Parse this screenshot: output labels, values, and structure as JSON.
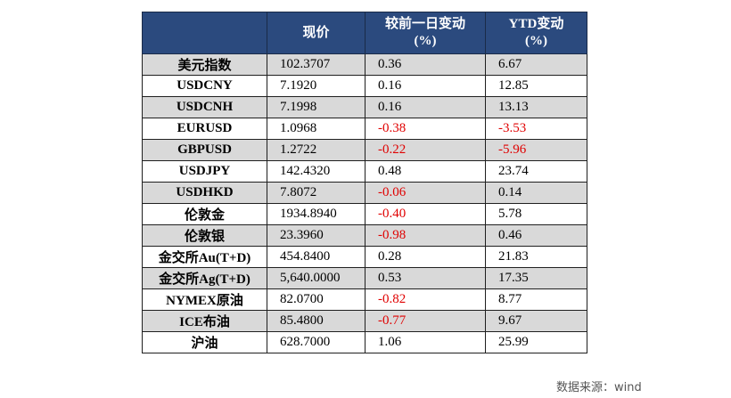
{
  "table": {
    "headers": [
      "",
      "现价",
      "较前一日变动\n(%)",
      "YTD变动\n(%)"
    ],
    "header_lines": {
      "price": "现价",
      "day_change": [
        "较前一日变动",
        "(%)"
      ],
      "ytd_change": [
        "YTD变动",
        "(%)"
      ]
    },
    "rows": [
      {
        "name": "美元指数",
        "price": "102.3707",
        "day": "0.36",
        "ytd": "6.67"
      },
      {
        "name": "USDCNY",
        "price": "7.1920",
        "day": "0.16",
        "ytd": "12.85"
      },
      {
        "name": "USDCNH",
        "price": "7.1998",
        "day": "0.16",
        "ytd": "13.13"
      },
      {
        "name": "EURUSD",
        "price": "1.0968",
        "day": "-0.38",
        "ytd": "-3.53"
      },
      {
        "name": "GBPUSD",
        "price": "1.2722",
        "day": "-0.22",
        "ytd": "-5.96"
      },
      {
        "name": "USDJPY",
        "price": "142.4320",
        "day": "0.48",
        "ytd": "23.74"
      },
      {
        "name": "USDHKD",
        "price": "7.8072",
        "day": "-0.06",
        "ytd": "0.14"
      },
      {
        "name": "伦敦金",
        "price": "1934.8940",
        "day": "-0.40",
        "ytd": "5.78"
      },
      {
        "name": "伦敦银",
        "price": "23.3960",
        "day": "-0.98",
        "ytd": "0.46"
      },
      {
        "name": "金交所Au(T+D)",
        "price": "454.8400",
        "day": "0.28",
        "ytd": "21.83"
      },
      {
        "name": "金交所Ag(T+D)",
        "price": "5,640.0000",
        "day": "0.53",
        "ytd": "17.35"
      },
      {
        "name": "NYMEX原油",
        "price": "82.0700",
        "day": "-0.82",
        "ytd": "8.77"
      },
      {
        "name": "ICE布油",
        "price": "85.4800",
        "day": "-0.77",
        "ytd": "9.67"
      },
      {
        "name": "沪油",
        "price": "628.7000",
        "day": "1.06",
        "ytd": "25.99"
      }
    ]
  },
  "source": "数据来源：wind",
  "colors": {
    "header_bg": "#2b4a7e",
    "negative": "#e00000",
    "stripe": "#d9d9d9"
  }
}
